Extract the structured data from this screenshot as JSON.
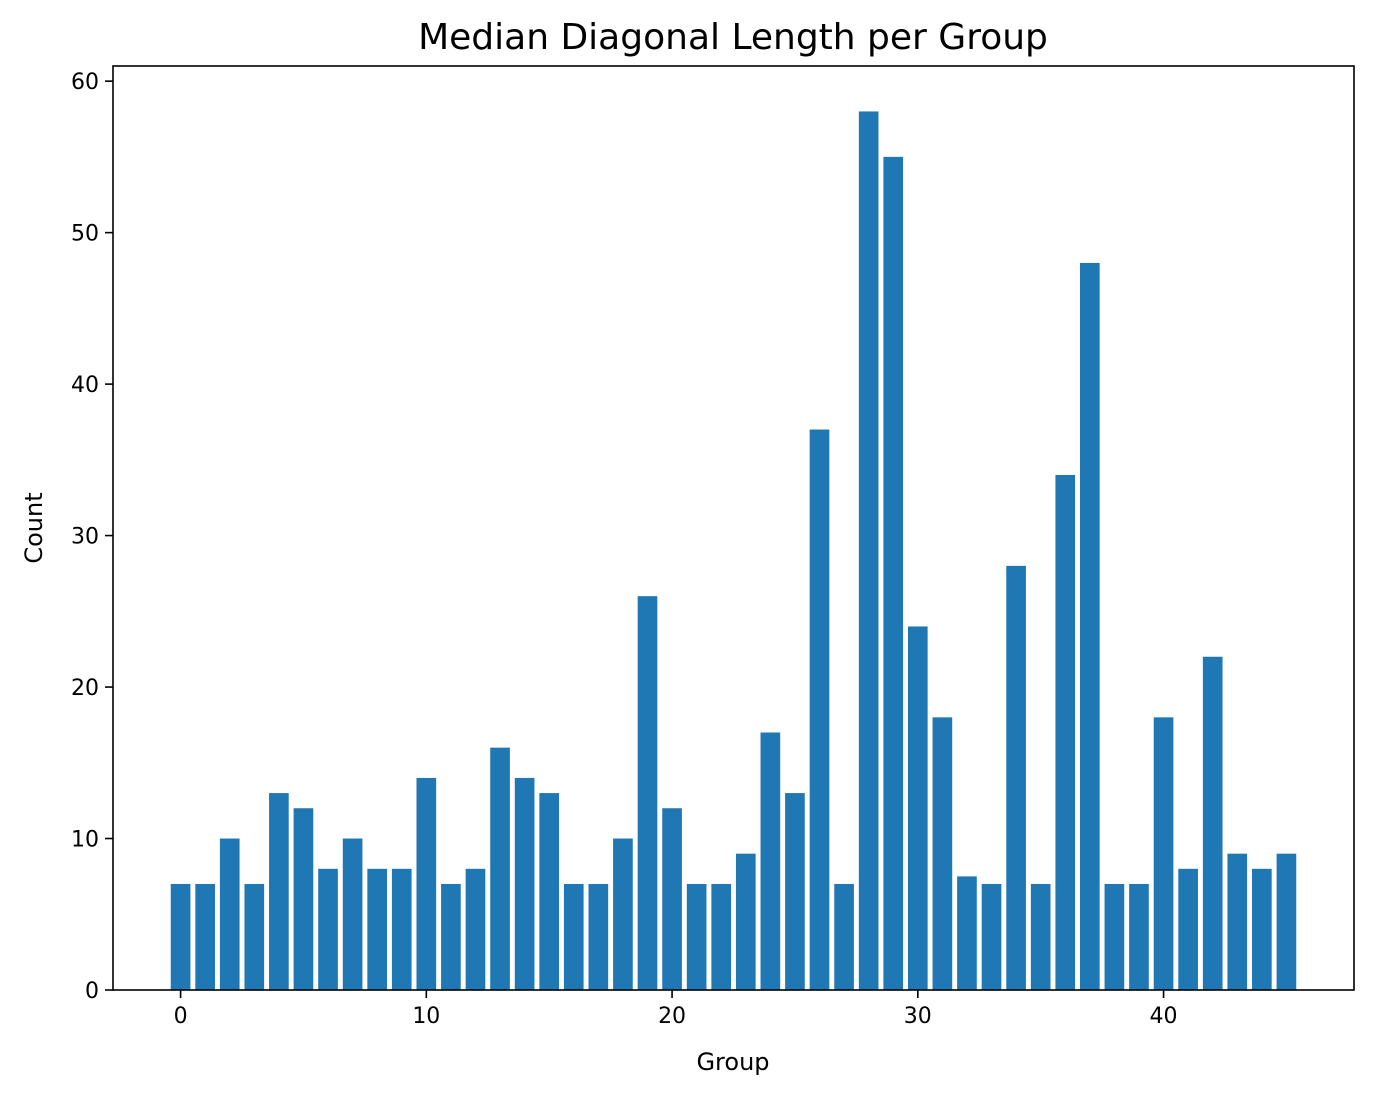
{
  "chart_data": {
    "type": "bar",
    "title": "Median Diagonal Length per Group",
    "xlabel": "Group",
    "ylabel": "Count",
    "x": [
      0,
      1,
      2,
      3,
      4,
      5,
      6,
      7,
      8,
      9,
      10,
      11,
      12,
      13,
      14,
      15,
      16,
      17,
      18,
      19,
      20,
      21,
      22,
      23,
      24,
      25,
      26,
      27,
      28,
      29,
      30,
      31,
      32,
      33,
      34,
      35,
      36,
      37,
      38,
      39,
      40,
      41,
      42,
      43,
      44,
      45
    ],
    "values": [
      7,
      7,
      10,
      7,
      13,
      12,
      8,
      10,
      8,
      8,
      14,
      7,
      8,
      16,
      14,
      13,
      7,
      7,
      10,
      26,
      12,
      7,
      7,
      9,
      17,
      13,
      37,
      7,
      58,
      55,
      24,
      18,
      7.5,
      7,
      28,
      7,
      34,
      48,
      7,
      7,
      18,
      8,
      22,
      9,
      8,
      9
    ],
    "xlim": [
      -2.75,
      47.75
    ],
    "ylim": [
      0,
      61
    ],
    "xticks": [
      0,
      10,
      20,
      30,
      40
    ],
    "yticks": [
      0,
      10,
      20,
      30,
      40,
      50,
      60
    ],
    "bar_color": "#1f77b4",
    "grid": false,
    "legend": "none"
  }
}
